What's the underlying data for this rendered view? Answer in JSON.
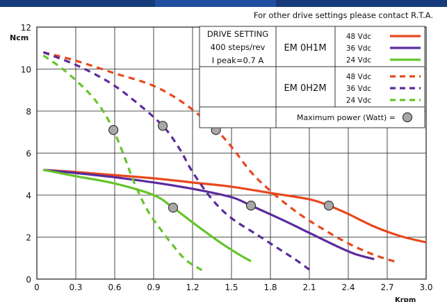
{
  "chart_data": {
    "type": "line",
    "note": "For other drive settings please contact R.T.A.",
    "ylabel": "Ncm",
    "xlabel": "Krpm",
    "xlim": [
      0,
      3.0
    ],
    "ylim": [
      0,
      12
    ],
    "x_ticks": [
      "0",
      "0.3",
      "0.6",
      "0.9",
      "1.2",
      "1.5",
      "1.8",
      "2.1",
      "2.4",
      "2.7",
      "3.0"
    ],
    "y_ticks": [
      "0",
      "2",
      "4",
      "6",
      "8",
      "10",
      "12"
    ],
    "grid": true,
    "legend": {
      "drive_setting": [
        "DRIVE SETTING",
        "400 steps/rev",
        "I peak=0.7 A"
      ],
      "motors": [
        {
          "name": "EM 0H1M",
          "entries": [
            {
              "label": "48 Vdc",
              "color": "#e8471c",
              "dash": false
            },
            {
              "label": "36 Vdc",
              "color": "#5b2a9c",
              "dash": false
            },
            {
              "label": "24 Vdc",
              "color": "#66c42a",
              "dash": false
            }
          ]
        },
        {
          "name": "EM 0H2M",
          "entries": [
            {
              "label": "48 Vdc",
              "color": "#e8471c",
              "dash": true
            },
            {
              "label": "36 Vdc",
              "color": "#5b2a9c",
              "dash": true
            },
            {
              "label": "24 Vdc",
              "color": "#66c42a",
              "dash": true
            }
          ]
        }
      ],
      "max_power_label": "Maximum power (Watt) ="
    },
    "series": [
      {
        "motor": "EM 0H1M",
        "voltage": "48 Vdc",
        "color": "#e8471c",
        "dash": false,
        "points": [
          [
            0.05,
            5.2
          ],
          [
            0.3,
            5.1
          ],
          [
            0.6,
            4.95
          ],
          [
            0.9,
            4.8
          ],
          [
            1.2,
            4.6
          ],
          [
            1.5,
            4.4
          ],
          [
            1.8,
            4.1
          ],
          [
            2.1,
            3.8
          ],
          [
            2.25,
            3.5
          ],
          [
            2.4,
            3.1
          ],
          [
            2.6,
            2.5
          ],
          [
            2.8,
            2.05
          ],
          [
            3.0,
            1.75
          ]
        ]
      },
      {
        "motor": "EM 0H1M",
        "voltage": "36 Vdc",
        "color": "#5b2a9c",
        "dash": false,
        "points": [
          [
            0.05,
            5.2
          ],
          [
            0.3,
            5.05
          ],
          [
            0.6,
            4.85
          ],
          [
            0.9,
            4.6
          ],
          [
            1.2,
            4.3
          ],
          [
            1.5,
            3.9
          ],
          [
            1.65,
            3.5
          ],
          [
            1.9,
            2.8
          ],
          [
            2.1,
            2.2
          ],
          [
            2.3,
            1.6
          ],
          [
            2.45,
            1.2
          ],
          [
            2.6,
            0.95
          ]
        ]
      },
      {
        "motor": "EM 0H1M",
        "voltage": "24 Vdc",
        "color": "#66c42a",
        "dash": false,
        "points": [
          [
            0.05,
            5.2
          ],
          [
            0.3,
            4.9
          ],
          [
            0.6,
            4.55
          ],
          [
            0.9,
            4.0
          ],
          [
            1.05,
            3.4
          ],
          [
            1.2,
            2.7
          ],
          [
            1.4,
            1.8
          ],
          [
            1.55,
            1.2
          ],
          [
            1.65,
            0.85
          ]
        ]
      },
      {
        "motor": "EM 0H2M",
        "voltage": "48 Vdc",
        "color": "#e8471c",
        "dash": true,
        "points": [
          [
            0.05,
            10.8
          ],
          [
            0.3,
            10.4
          ],
          [
            0.6,
            9.8
          ],
          [
            0.9,
            9.2
          ],
          [
            1.15,
            8.3
          ],
          [
            1.38,
            7.1
          ],
          [
            1.5,
            6.3
          ],
          [
            1.65,
            5.1
          ],
          [
            1.8,
            4.2
          ],
          [
            2.0,
            3.2
          ],
          [
            2.2,
            2.4
          ],
          [
            2.4,
            1.7
          ],
          [
            2.6,
            1.15
          ],
          [
            2.78,
            0.8
          ]
        ]
      },
      {
        "motor": "EM 0H2M",
        "voltage": "36 Vdc",
        "color": "#5b2a9c",
        "dash": true,
        "points": [
          [
            0.05,
            10.8
          ],
          [
            0.3,
            10.2
          ],
          [
            0.55,
            9.4
          ],
          [
            0.75,
            8.5
          ],
          [
            0.97,
            7.3
          ],
          [
            1.1,
            6.2
          ],
          [
            1.2,
            5.1
          ],
          [
            1.35,
            3.8
          ],
          [
            1.5,
            2.9
          ],
          [
            1.7,
            2.1
          ],
          [
            1.9,
            1.3
          ],
          [
            2.0,
            0.9
          ],
          [
            2.1,
            0.45
          ]
        ]
      },
      {
        "motor": "EM 0H2M",
        "voltage": "24 Vdc",
        "color": "#66c42a",
        "dash": true,
        "points": [
          [
            0.05,
            10.65
          ],
          [
            0.2,
            10.0
          ],
          [
            0.38,
            9.0
          ],
          [
            0.5,
            8.1
          ],
          [
            0.59,
            7.1
          ],
          [
            0.67,
            5.9
          ],
          [
            0.75,
            4.6
          ],
          [
            0.85,
            3.3
          ],
          [
            0.95,
            2.4
          ],
          [
            1.05,
            1.6
          ],
          [
            1.15,
            0.9
          ],
          [
            1.28,
            0.4
          ]
        ]
      }
    ],
    "max_power_points": [
      [
        0.59,
        7.1
      ],
      [
        0.97,
        7.3
      ],
      [
        1.38,
        7.1
      ],
      [
        1.05,
        3.4
      ],
      [
        1.65,
        3.5
      ],
      [
        2.25,
        3.5
      ]
    ]
  }
}
